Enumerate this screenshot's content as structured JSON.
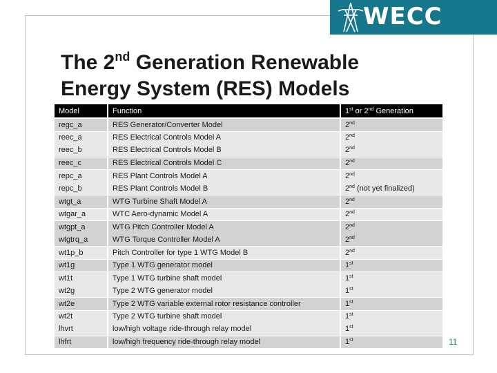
{
  "logo": {
    "text": "WECC",
    "icon": "transmission-tower-icon"
  },
  "title": {
    "line1_before": "The 2",
    "line1_sup": "nd",
    "line1_after": " Generation Renewable",
    "line2": "Energy System (RES) Models"
  },
  "table": {
    "headers": {
      "model": "Model",
      "function": "Function",
      "gen_a": "1",
      "gen_a_sup": "st",
      "gen_mid": " or 2",
      "gen_b_sup": "nd",
      "gen_after": " Generation"
    },
    "rows": [
      {
        "model": "regc_a",
        "function": "RES Generator/Converter Model",
        "gen": "2",
        "gen_sup": "nd",
        "note": ""
      },
      {
        "model": "reec_a",
        "function": "RES Electrical Controls Model A",
        "gen": "2",
        "gen_sup": "nd",
        "note": ""
      },
      {
        "model": "reec_b",
        "function": "RES Electrical Controls Model B",
        "gen": "2",
        "gen_sup": "nd",
        "note": ""
      },
      {
        "model": "reec_c",
        "function": "RES Electrical Controls Model C",
        "gen": "2",
        "gen_sup": "nd",
        "note": ""
      },
      {
        "model": "repc_a",
        "function": "RES Plant Controls Model A",
        "gen": "2",
        "gen_sup": "nd",
        "note": ""
      },
      {
        "model": "repc_b",
        "function": "RES Plant Controls Model B",
        "gen": "2",
        "gen_sup": "nd",
        "note": " (not yet finalized)"
      },
      {
        "model": "wtgt_a",
        "function": "WTG Turbine Shaft Model A",
        "gen": "2",
        "gen_sup": "nd",
        "note": ""
      },
      {
        "model": "wtgar_a",
        "function": "WTC Aero-dynamic Model A",
        "gen": "2",
        "gen_sup": "nd",
        "note": ""
      },
      {
        "model": "wtgpt_a",
        "function": "WTG Pitch Controller Model A",
        "gen": "2",
        "gen_sup": "nd",
        "note": ""
      },
      {
        "model": "wtgtrq_a",
        "function": "WTG Torque Controller Model A",
        "gen": "2",
        "gen_sup": "nd",
        "note": ""
      },
      {
        "model": "wt1p_b",
        "function": "Pitch Controller for type 1 WTG Model B",
        "gen": "2",
        "gen_sup": "nd",
        "note": ""
      },
      {
        "model": "wt1g",
        "function": "Type 1 WTG generator model",
        "gen": "1",
        "gen_sup": "st",
        "note": ""
      },
      {
        "model": "wt1t",
        "function": "Type 1 WTG turbine shaft model",
        "gen": "1",
        "gen_sup": "st",
        "note": ""
      },
      {
        "model": "wt2g",
        "function": "Type 2 WTG generator model",
        "gen": "1",
        "gen_sup": "st",
        "note": ""
      },
      {
        "model": "wt2e",
        "function": "Type 2 WTG variable external rotor resistance controller",
        "gen": "1",
        "gen_sup": "st",
        "note": ""
      },
      {
        "model": "wt2t",
        "function": "Type 2 WTG turbine shaft model",
        "gen": "1",
        "gen_sup": "st",
        "note": ""
      },
      {
        "model": "lhvrt",
        "function": "low/high voltage ride-through relay model",
        "gen": "1",
        "gen_sup": "st",
        "note": ""
      },
      {
        "model": "lhfrt",
        "function": "low/high frequency ride-through relay model",
        "gen": "1",
        "gen_sup": "st",
        "note": ""
      }
    ]
  },
  "page_number": "11",
  "colors": {
    "brand": "#15768c",
    "header_bg": "#000000",
    "row_dark": "#d2d2d2",
    "row_light": "#e8e8e8"
  }
}
